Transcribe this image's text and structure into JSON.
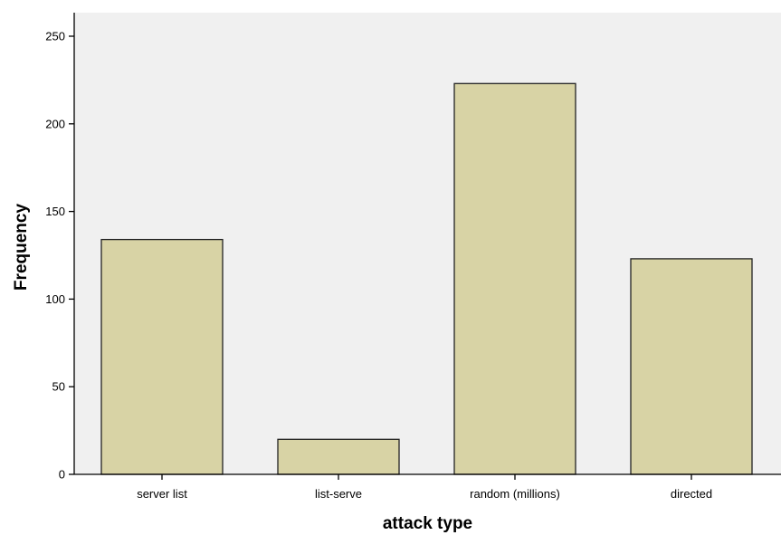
{
  "chart_data": {
    "type": "bar",
    "categories": [
      "server list",
      "list-serve",
      "random (millions)",
      "directed"
    ],
    "values": [
      134,
      20,
      223,
      123
    ],
    "xlabel": "attack type",
    "ylabel": "Frequency",
    "ylim": [
      0,
      250
    ],
    "yticks": [
      0,
      50,
      100,
      150,
      200,
      250
    ],
    "grid": false,
    "legend": "none",
    "colors": {
      "plot_background": "#f0f0f0",
      "bar_fill": "#d8d3a5",
      "bar_stroke": "#222222",
      "axis": "#000000"
    }
  }
}
